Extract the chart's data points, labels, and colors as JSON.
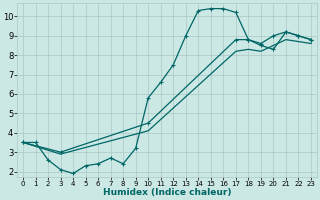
{
  "title": "",
  "xlabel": "Humidex (Indice chaleur)",
  "ylabel": "",
  "bg_color": "#cce8e4",
  "grid_color": "#aac8c4",
  "line_color": "#006666",
  "xlim": [
    -0.5,
    23.5
  ],
  "ylim": [
    1.7,
    10.7
  ],
  "xticks": [
    0,
    1,
    2,
    3,
    4,
    5,
    6,
    7,
    8,
    9,
    10,
    11,
    12,
    13,
    14,
    15,
    16,
    17,
    18,
    19,
    20,
    21,
    22,
    23
  ],
  "yticks": [
    2,
    3,
    4,
    5,
    6,
    7,
    8,
    9,
    10
  ],
  "line1_x": [
    0,
    1,
    2,
    3,
    4,
    5,
    6,
    7,
    8,
    9,
    10,
    11,
    12,
    13,
    14,
    15,
    16,
    17,
    18,
    19,
    20,
    21,
    22,
    23
  ],
  "line1_y": [
    3.5,
    3.5,
    2.6,
    2.1,
    1.9,
    2.3,
    2.4,
    2.7,
    2.4,
    3.2,
    5.8,
    6.6,
    7.5,
    9.0,
    10.3,
    10.4,
    10.4,
    10.2,
    8.8,
    8.5,
    8.3,
    9.2,
    9.0,
    8.8
  ],
  "line2_x": [
    0,
    3,
    10,
    17,
    18,
    19,
    20,
    21,
    22,
    23
  ],
  "line2_y": [
    3.5,
    3.0,
    4.5,
    8.8,
    8.8,
    8.6,
    9.0,
    9.2,
    9.0,
    8.8
  ],
  "line3_x": [
    0,
    3,
    10,
    17,
    18,
    19,
    20,
    21,
    22,
    23
  ],
  "line3_y": [
    3.5,
    2.9,
    4.1,
    8.2,
    8.3,
    8.2,
    8.5,
    8.8,
    8.7,
    8.6
  ],
  "marker_size": 2.5,
  "line_width": 0.9,
  "xlabel_size": 6.5,
  "ytick_size": 6,
  "xtick_size": 5
}
